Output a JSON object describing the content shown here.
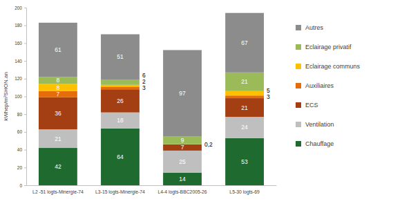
{
  "chart_data": {
    "type": "bar",
    "stacked": true,
    "data_labels": true,
    "grid": false,
    "legend": "right",
    "y_label": "kWhep/m²SHON.an",
    "categories": [
      "L2 -51 logts-Minergie-74",
      "L3-15 logts-Minergie-74",
      "L4-4 logts-BBC2005-26",
      "L5-30 logts-69"
    ],
    "ylim": [
      0,
      200
    ],
    "yticks": [
      0,
      20,
      40,
      60,
      80,
      100,
      120,
      140,
      160,
      180,
      200
    ],
    "series": [
      {
        "name": "Chauffage",
        "color": "#1f6b2f",
        "values": [
          42,
          64,
          14,
          53
        ]
      },
      {
        "name": "Ventilation",
        "color": "#bfbfbf",
        "values": [
          21,
          18,
          25,
          24
        ]
      },
      {
        "name": "ECS",
        "color": "#a33f12",
        "values": [
          36,
          26,
          7,
          21
        ]
      },
      {
        "name": "Auxiliaires",
        "color": "#e46c0a",
        "values": [
          7,
          3,
          null,
          3
        ]
      },
      {
        "name": "Eclairage communs",
        "color": "#ffc000",
        "values": [
          8,
          2,
          0.2,
          5
        ],
        "value_labels": [
          "8",
          "2",
          "0,2",
          "5"
        ]
      },
      {
        "name": "Eclairage privatif",
        "color": "#9bbb59",
        "values": [
          8,
          6,
          9,
          21
        ]
      },
      {
        "name": "Autres",
        "color": "#8c8c8c",
        "values": [
          61,
          51,
          97,
          67
        ]
      }
    ]
  }
}
